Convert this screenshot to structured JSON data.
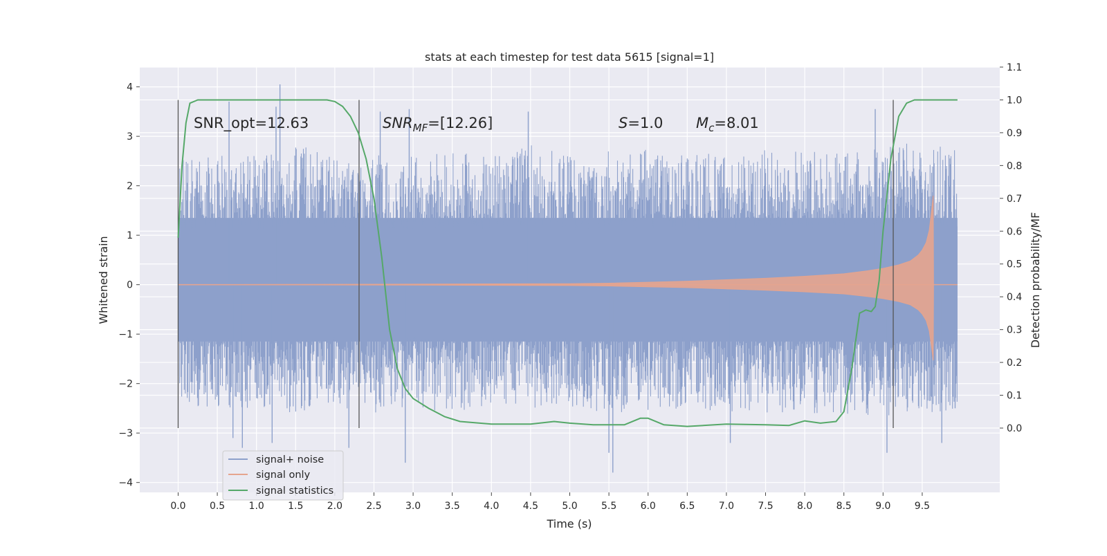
{
  "chart_data": {
    "type": "line",
    "title": "stats at each timestep for test data 5615 [signal=1]",
    "xlabel": "Time (s)",
    "ylabel_left": "Whitened strain",
    "ylabel_right": "Detection probability/MF",
    "x_ticks": [
      "0.0",
      "0.5",
      "1.0",
      "1.5",
      "2.0",
      "2.5",
      "3.0",
      "3.5",
      "4.0",
      "4.5",
      "5.0",
      "5.5",
      "6.0",
      "6.5",
      "7.0",
      "7.5",
      "8.0",
      "8.5",
      "9.0",
      "9.5"
    ],
    "y_left_ticks": [
      "4",
      "3",
      "2",
      "1",
      "0",
      "−1",
      "−2",
      "−3",
      "−4"
    ],
    "y_right_ticks": [
      "1.1",
      "1.0",
      "0.9",
      "0.8",
      "0.7",
      "0.6",
      "0.5",
      "0.4",
      "0.3",
      "0.2",
      "0.1",
      "0.0"
    ],
    "xlim": [
      -0.49,
      10.49
    ],
    "ylim_left": [
      -4.2,
      4.4
    ],
    "ylim_right": [
      -0.196,
      1.1
    ],
    "grid": true,
    "legend_position": "lower-left",
    "annotations": {
      "snr_opt": "SNR_opt=12.63",
      "snr_mf_label": "SNR",
      "snr_mf_sub": "MF",
      "snr_mf_value": "=[12.26]",
      "s_label": "S",
      "s_value": "=1.0",
      "mc_label": "M",
      "mc_sub": "c",
      "mc_value": "=8.01"
    },
    "vertical_markers": [
      0.0,
      2.31,
      9.13
    ],
    "series": [
      {
        "name": "signal+ noise",
        "color": "#8da0cb",
        "axis": "left",
        "envelope_upper": [
          [
            0.0,
            2.0
          ],
          [
            0.5,
            2.1
          ],
          [
            1.0,
            2.0
          ],
          [
            1.5,
            2.2
          ],
          [
            2.0,
            2.0
          ],
          [
            2.5,
            2.1
          ],
          [
            3.0,
            2.0
          ],
          [
            3.5,
            2.1
          ],
          [
            4.0,
            2.0
          ],
          [
            4.5,
            2.2
          ],
          [
            5.0,
            2.0
          ],
          [
            5.5,
            2.1
          ],
          [
            6.0,
            2.1
          ],
          [
            6.5,
            2.0
          ],
          [
            7.0,
            2.1
          ],
          [
            7.5,
            2.1
          ],
          [
            8.0,
            2.1
          ],
          [
            8.5,
            2.1
          ],
          [
            9.0,
            2.2
          ],
          [
            9.5,
            2.2
          ],
          [
            9.95,
            2.1
          ]
        ],
        "envelope_lower": [
          [
            0.0,
            -1.8
          ],
          [
            0.5,
            -2.0
          ],
          [
            1.0,
            -1.9
          ],
          [
            1.5,
            -2.0
          ],
          [
            2.0,
            -1.9
          ],
          [
            2.5,
            -2.0
          ],
          [
            3.0,
            -1.9
          ],
          [
            3.5,
            -2.0
          ],
          [
            4.0,
            -1.9
          ],
          [
            4.5,
            -2.0
          ],
          [
            5.0,
            -1.9
          ],
          [
            5.5,
            -2.0
          ],
          [
            6.0,
            -2.0
          ],
          [
            6.5,
            -1.9
          ],
          [
            7.0,
            -2.0
          ],
          [
            7.5,
            -2.0
          ],
          [
            8.0,
            -2.0
          ],
          [
            8.5,
            -2.0
          ],
          [
            9.0,
            -2.1
          ],
          [
            9.5,
            -2.0
          ],
          [
            9.95,
            -2.0
          ]
        ],
        "peaks": [
          [
            0.65,
            3.7
          ],
          [
            1.3,
            4.05
          ],
          [
            1.25,
            3.6
          ],
          [
            2.58,
            3.5
          ],
          [
            2.95,
            3.55
          ],
          [
            4.47,
            3.5
          ],
          [
            8.9,
            3.55
          ],
          [
            0.7,
            -3.1
          ],
          [
            0.82,
            -3.3
          ],
          [
            1.2,
            -3.2
          ],
          [
            2.18,
            -3.3
          ],
          [
            2.9,
            -3.6
          ],
          [
            5.5,
            -3.4
          ],
          [
            5.55,
            -3.8
          ],
          [
            7.05,
            -3.2
          ],
          [
            9.05,
            -3.4
          ],
          [
            9.75,
            -3.2
          ],
          [
            9.92,
            -2.5
          ]
        ]
      },
      {
        "name": "signal only",
        "color": "#e5a48e",
        "axis": "left",
        "points": [
          [
            0.0,
            0.0
          ],
          [
            3.0,
            0.01
          ],
          [
            5.0,
            0.02
          ],
          [
            5.5,
            0.03
          ],
          [
            6.0,
            0.05
          ],
          [
            6.5,
            0.07
          ],
          [
            7.0,
            0.1
          ],
          [
            7.5,
            0.13
          ],
          [
            8.0,
            0.17
          ],
          [
            8.5,
            0.22
          ],
          [
            8.8,
            0.28
          ],
          [
            9.0,
            0.33
          ],
          [
            9.2,
            0.4
          ],
          [
            9.35,
            0.48
          ],
          [
            9.45,
            0.6
          ],
          [
            9.5,
            0.7
          ],
          [
            9.55,
            0.85
          ],
          [
            9.59,
            1.1
          ],
          [
            9.62,
            1.5
          ],
          [
            9.64,
            1.8
          ],
          [
            9.645,
            0.0
          ]
        ]
      },
      {
        "name": "signal statistics",
        "color": "#55a868",
        "axis": "right",
        "points": [
          [
            0.0,
            0.58
          ],
          [
            0.05,
            0.8
          ],
          [
            0.1,
            0.93
          ],
          [
            0.15,
            0.99
          ],
          [
            0.25,
            1.0
          ],
          [
            1.0,
            1.0
          ],
          [
            1.5,
            1.0
          ],
          [
            1.9,
            1.0
          ],
          [
            2.0,
            0.995
          ],
          [
            2.1,
            0.98
          ],
          [
            2.2,
            0.95
          ],
          [
            2.3,
            0.9
          ],
          [
            2.4,
            0.82
          ],
          [
            2.5,
            0.7
          ],
          [
            2.6,
            0.52
          ],
          [
            2.7,
            0.3
          ],
          [
            2.8,
            0.18
          ],
          [
            2.9,
            0.12
          ],
          [
            3.0,
            0.09
          ],
          [
            3.2,
            0.06
          ],
          [
            3.4,
            0.035
          ],
          [
            3.6,
            0.02
          ],
          [
            4.0,
            0.012
          ],
          [
            4.5,
            0.012
          ],
          [
            4.8,
            0.02
          ],
          [
            5.0,
            0.015
          ],
          [
            5.3,
            0.01
          ],
          [
            5.7,
            0.01
          ],
          [
            5.9,
            0.03
          ],
          [
            6.0,
            0.03
          ],
          [
            6.2,
            0.01
          ],
          [
            6.5,
            0.005
          ],
          [
            7.0,
            0.012
          ],
          [
            7.5,
            0.01
          ],
          [
            7.8,
            0.008
          ],
          [
            8.0,
            0.022
          ],
          [
            8.2,
            0.015
          ],
          [
            8.4,
            0.02
          ],
          [
            8.5,
            0.05
          ],
          [
            8.6,
            0.18
          ],
          [
            8.7,
            0.35
          ],
          [
            8.78,
            0.36
          ],
          [
            8.85,
            0.355
          ],
          [
            8.9,
            0.37
          ],
          [
            8.95,
            0.45
          ],
          [
            9.0,
            0.6
          ],
          [
            9.1,
            0.82
          ],
          [
            9.2,
            0.95
          ],
          [
            9.3,
            0.99
          ],
          [
            9.4,
            1.0
          ],
          [
            9.95,
            1.0
          ]
        ]
      }
    ]
  }
}
